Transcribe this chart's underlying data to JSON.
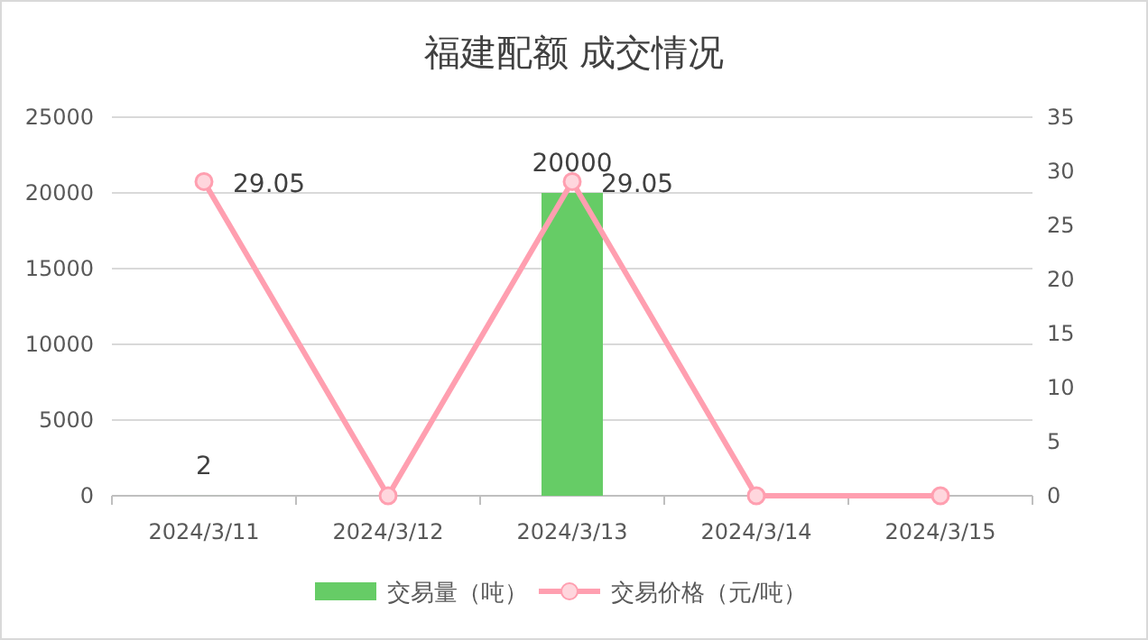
{
  "chart_data": {
    "type": "bar",
    "title": "福建配额 成交情况",
    "categories": [
      "2024/3/11",
      "2024/3/12",
      "2024/3/13",
      "2024/3/14",
      "2024/3/15"
    ],
    "series": [
      {
        "name": "交易量（吨）",
        "color": "#66cc66",
        "values": [
          2,
          0,
          20000,
          0,
          0
        ],
        "value_labels": [
          "2",
          null,
          "20000",
          null,
          null
        ]
      },
      {
        "name": "交易价格（元/吨）",
        "type": "line",
        "axis": "y2",
        "color": "#ff9fb0",
        "marker": "circle",
        "values": [
          29.05,
          0,
          29.05,
          0,
          0
        ],
        "value_labels": [
          "29.05",
          null,
          "29.05",
          null,
          null
        ]
      }
    ],
    "ylim": [
      0,
      25000
    ],
    "yticks": [
      0,
      5000,
      10000,
      15000,
      20000,
      25000
    ],
    "y2lim": [
      0,
      35
    ],
    "y2ticks": [
      0,
      5,
      10,
      15,
      20,
      25,
      30,
      35
    ],
    "grid": "y",
    "legend": "bottom"
  }
}
